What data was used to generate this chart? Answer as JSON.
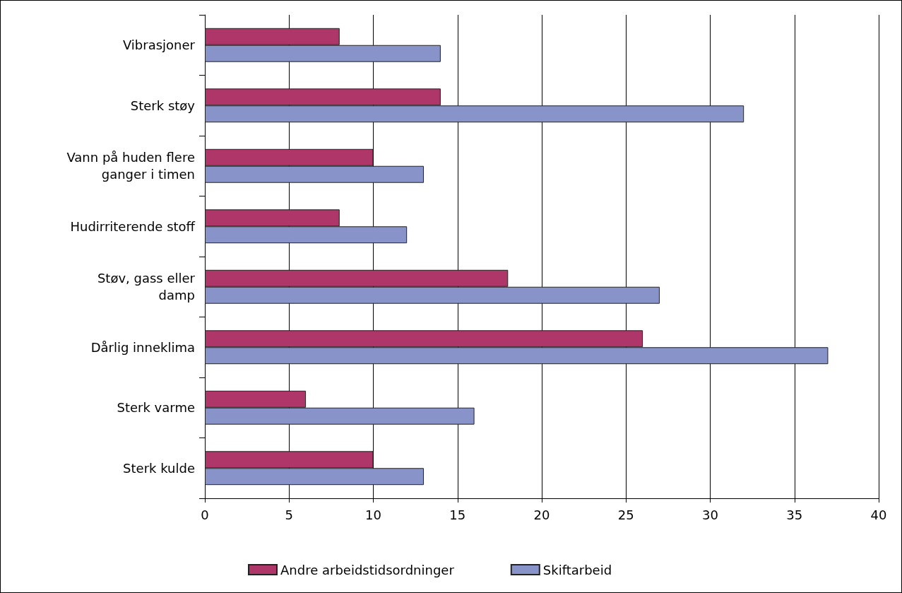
{
  "chart_data": {
    "type": "bar",
    "orientation": "horizontal",
    "categories": [
      "Vibrasjoner",
      "Sterk støy",
      "Vann på huden flere\nganger i timen",
      "Hudirriterende stoff",
      "Støv, gass eller\ndamp",
      "Dårlig inneklima",
      "Sterk varme",
      "Sterk kulde"
    ],
    "series": [
      {
        "name": "Andre arbeidstidsordninger",
        "color": "#ae3669",
        "values": [
          8,
          14,
          10,
          8,
          18,
          26,
          6,
          10
        ]
      },
      {
        "name": "Skiftarbeid",
        "color": "#8793c9",
        "values": [
          14,
          32,
          13,
          12,
          27,
          37,
          16,
          13
        ]
      }
    ],
    "xlim": [
      0,
      40
    ],
    "xticks": [
      0,
      5,
      10,
      15,
      20,
      25,
      30,
      35,
      40
    ],
    "grid": "x",
    "legend": "bottom"
  }
}
